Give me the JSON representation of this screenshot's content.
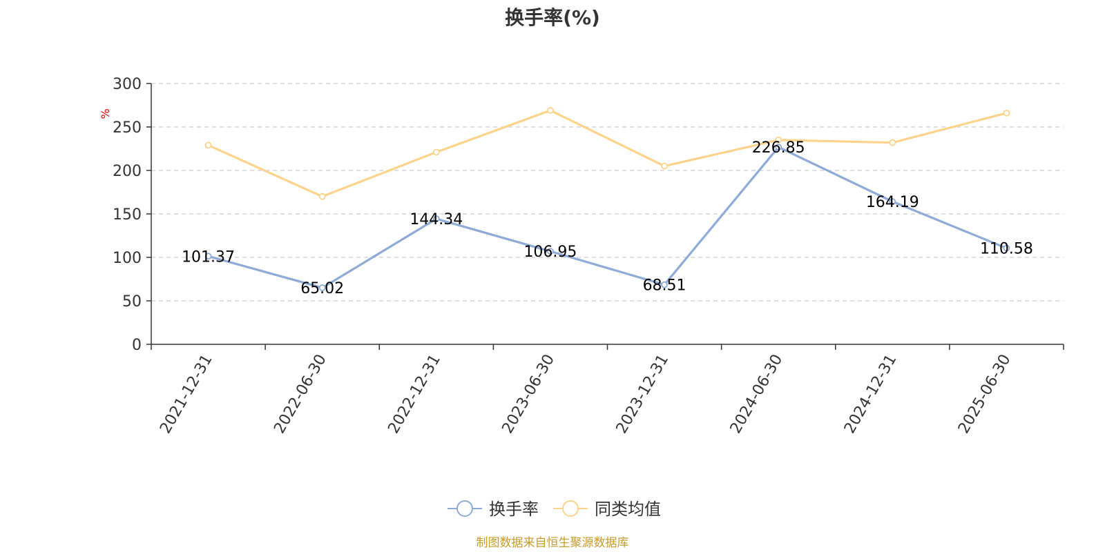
{
  "chart_data": {
    "type": "line",
    "title": "换手率(%)",
    "xlabel": "",
    "ylabel": "%",
    "ylim": [
      0,
      300
    ],
    "yticks": [
      0,
      50,
      100,
      150,
      200,
      250,
      300
    ],
    "grid": true,
    "legend_placement": "bottom-center",
    "categories": [
      "2021-12-31",
      "2022-06-30",
      "2022-12-31",
      "2023-06-30",
      "2023-12-31",
      "2024-06-30",
      "2024-12-31",
      "2025-06-30"
    ],
    "series": [
      {
        "name": "换手率",
        "color": "#8eaad6",
        "values": [
          101.37,
          65.02,
          144.34,
          106.95,
          68.51,
          226.85,
          164.19,
          110.58
        ],
        "show_labels": true
      },
      {
        "name": "同类均值",
        "color": "#fdd38c",
        "values": [
          229,
          170,
          221,
          269,
          205,
          235,
          232,
          266
        ],
        "show_labels": false
      }
    ]
  },
  "source_text": "制图数据来自恒生聚源数据库"
}
